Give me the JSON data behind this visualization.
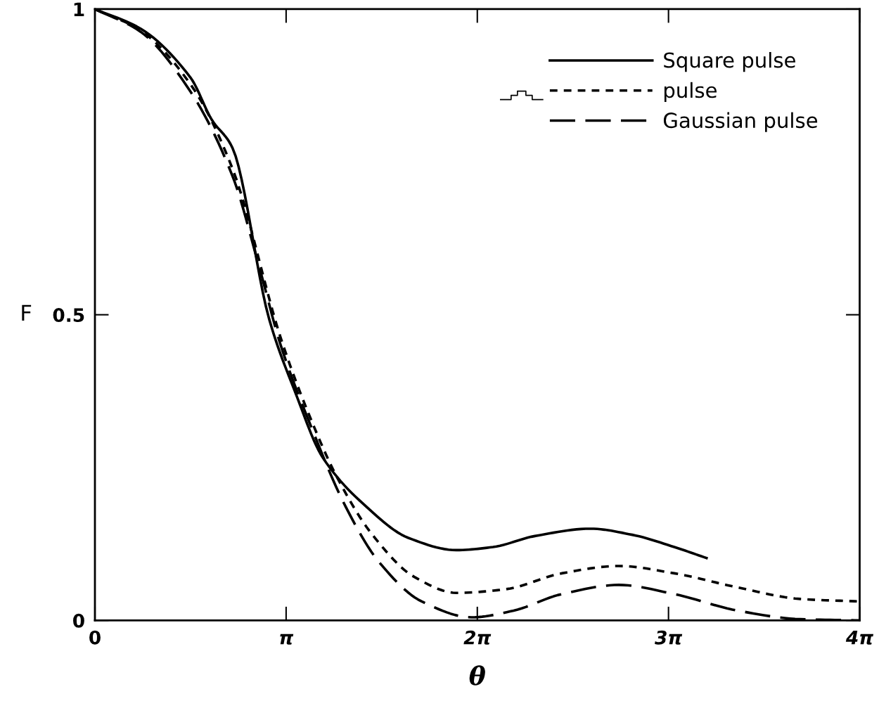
{
  "chart_data": {
    "type": "line",
    "xlabel": "θ",
    "ylabel": "F",
    "xlim": [
      0,
      12.566
    ],
    "ylim": [
      0,
      1
    ],
    "xticks": [
      0,
      {
        "value": 3.1416,
        "label": "π"
      },
      {
        "value": 6.2832,
        "label": "2π"
      },
      {
        "value": 9.4248,
        "label": "3π"
      },
      {
        "value": 12.566,
        "label": "4π"
      }
    ],
    "yticks": [
      0,
      0.5,
      1
    ],
    "legend": "top right",
    "grid": false,
    "series": [
      {
        "name": "Square pulse",
        "color": "#000000",
        "line_style": "solid",
        "x": [
          0,
          0.75,
          1.57,
          1.92,
          2.26,
          2.86,
          3.3,
          3.74,
          4.46,
          5.15,
          5.94,
          6.54,
          7.23,
          8.14,
          8.83,
          9.52,
          10.05
        ],
        "values": [
          1.0,
          0.968,
          0.888,
          0.819,
          0.773,
          0.494,
          0.371,
          0.267,
          0.186,
          0.135,
          0.115,
          0.12,
          0.138,
          0.15,
          0.14,
          0.12,
          0.102
        ]
      },
      {
        "name": "pulse",
        "color": "#000000",
        "line_style": "dotted",
        "x": [
          0,
          0.75,
          1.57,
          2.26,
          3.05,
          3.52,
          3.99,
          4.56,
          5.25,
          5.94,
          6.75,
          7.67,
          8.61,
          9.52,
          10.56,
          11.59,
          12.566
        ],
        "values": [
          1.0,
          0.965,
          0.877,
          0.739,
          0.463,
          0.336,
          0.232,
          0.14,
          0.071,
          0.045,
          0.051,
          0.077,
          0.089,
          0.077,
          0.054,
          0.035,
          0.031
        ]
      },
      {
        "name": "Gaussian pulse",
        "color": "#000000",
        "line_style": "dashed",
        "x": [
          0,
          0.75,
          1.57,
          2.26,
          2.7,
          3.05,
          3.52,
          4.12,
          4.68,
          5.37,
          6.19,
          6.88,
          7.67,
          8.61,
          9.52,
          10.56,
          11.59,
          12.566
        ],
        "values": [
          1.0,
          0.963,
          0.865,
          0.727,
          0.578,
          0.451,
          0.325,
          0.186,
          0.094,
          0.031,
          0.005,
          0.016,
          0.043,
          0.058,
          0.043,
          0.016,
          0.002,
          0.0
        ]
      }
    ]
  }
}
